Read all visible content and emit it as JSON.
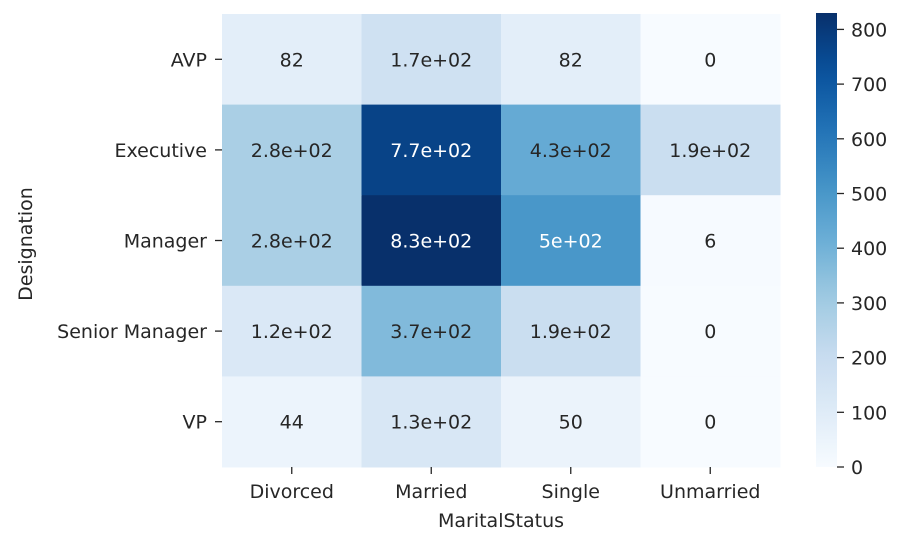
{
  "chart_data": {
    "type": "heatmap",
    "title": "",
    "xlabel": "MaritalStatus",
    "ylabel": "Designation",
    "x_categories": [
      "Divorced",
      "Married",
      "Single",
      "Unmarried"
    ],
    "y_categories": [
      "AVP",
      "Executive",
      "Manager",
      "Senior Manager",
      "VP"
    ],
    "values": [
      [
        82,
        170,
        82,
        0
      ],
      [
        280,
        770,
        430,
        190
      ],
      [
        280,
        830,
        500,
        6
      ],
      [
        120,
        370,
        190,
        0
      ],
      [
        44,
        130,
        50,
        0
      ]
    ],
    "annotations": [
      [
        "82",
        "1.7e+02",
        "82",
        "0"
      ],
      [
        "2.8e+02",
        "7.7e+02",
        "4.3e+02",
        "1.9e+02"
      ],
      [
        "2.8e+02",
        "8.3e+02",
        "5e+02",
        "6"
      ],
      [
        "1.2e+02",
        "3.7e+02",
        "1.9e+02",
        "0"
      ],
      [
        "44",
        "1.3e+02",
        "50",
        "0"
      ]
    ],
    "colorbar": {
      "min": 0,
      "max": 830,
      "ticks": [
        0,
        100,
        200,
        300,
        400,
        500,
        600,
        700,
        800
      ],
      "tick_labels": [
        "0",
        "100",
        "200",
        "300",
        "400",
        "500",
        "600",
        "700",
        "800"
      ]
    },
    "colormap": "Blues"
  }
}
